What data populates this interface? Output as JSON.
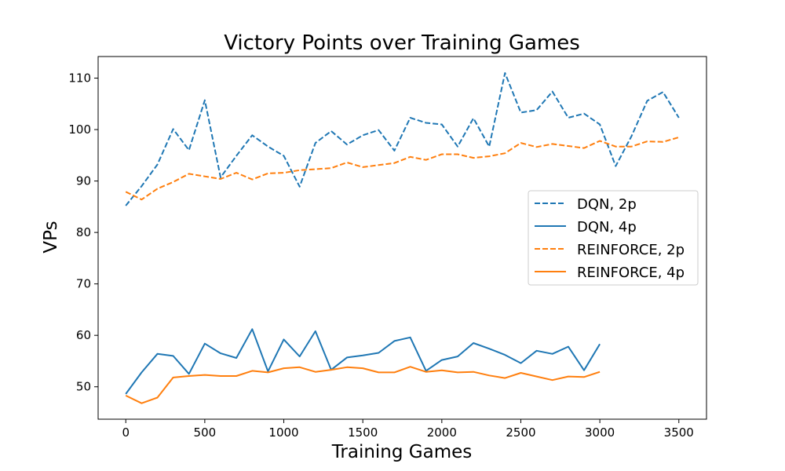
{
  "chart_data": {
    "type": "line",
    "title": "Victory Points over Training Games",
    "xlabel": "Training Games",
    "ylabel": "VPs",
    "xlim": [
      -175,
      3675
    ],
    "ylim": [
      43.7,
      114.2
    ],
    "xticks": [
      0,
      500,
      1000,
      1500,
      2000,
      2500,
      3000,
      3500
    ],
    "yticks": [
      50,
      60,
      70,
      80,
      90,
      100,
      110
    ],
    "grid": false,
    "legend_position": "center-right",
    "series": [
      {
        "name": "DQN, 2p",
        "color": "#1f77b4",
        "style": "dashed",
        "x": [
          0,
          100,
          200,
          300,
          400,
          500,
          600,
          700,
          800,
          900,
          1000,
          1100,
          1200,
          1300,
          1400,
          1500,
          1600,
          1700,
          1800,
          1900,
          2000,
          2100,
          2200,
          2300,
          2400,
          2500,
          2600,
          2700,
          2800,
          2900,
          3000,
          3100,
          3200,
          3300,
          3400,
          3500
        ],
        "y": [
          85.2,
          89.0,
          93.2,
          100.1,
          96.0,
          105.7,
          90.7,
          94.9,
          98.9,
          96.7,
          94.9,
          88.9,
          97.4,
          99.7,
          97.1,
          98.9,
          99.9,
          95.9,
          102.3,
          101.3,
          101.0,
          96.7,
          102.2,
          96.7,
          111.0,
          103.3,
          103.8,
          107.4,
          102.3,
          103.1,
          101.0,
          92.9,
          98.7,
          105.6,
          107.3,
          102.3
        ]
      },
      {
        "name": "DQN, 4p",
        "color": "#1f77b4",
        "style": "solid",
        "x": [
          0,
          100,
          200,
          300,
          400,
          500,
          600,
          700,
          800,
          900,
          1000,
          1100,
          1200,
          1300,
          1400,
          1500,
          1600,
          1700,
          1800,
          1900,
          2000,
          2100,
          2200,
          2300,
          2400,
          2500,
          2600,
          2700,
          2800,
          2900,
          3000
        ],
        "y": [
          48.6,
          52.8,
          56.4,
          56.0,
          52.5,
          58.4,
          56.5,
          55.6,
          61.2,
          53.0,
          59.2,
          55.9,
          60.8,
          53.3,
          55.7,
          56.1,
          56.6,
          58.9,
          59.6,
          53.1,
          55.2,
          55.9,
          58.5,
          57.4,
          56.2,
          54.6,
          57.0,
          56.4,
          57.8,
          53.2,
          58.3
        ]
      },
      {
        "name": "REINFORCE, 2p",
        "color": "#ff7f0e",
        "style": "dashed",
        "x": [
          0,
          100,
          200,
          300,
          400,
          500,
          600,
          700,
          800,
          900,
          1000,
          1100,
          1200,
          1300,
          1400,
          1500,
          1600,
          1700,
          1800,
          1900,
          2000,
          2100,
          2200,
          2300,
          2400,
          2500,
          2600,
          2700,
          2800,
          2900,
          3000,
          3100,
          3200,
          3300,
          3400,
          3500
        ],
        "y": [
          87.9,
          86.4,
          88.5,
          89.8,
          91.4,
          90.9,
          90.4,
          91.6,
          90.3,
          91.5,
          91.6,
          92.1,
          92.3,
          92.5,
          93.6,
          92.7,
          93.1,
          93.5,
          94.7,
          94.1,
          95.2,
          95.2,
          94.5,
          94.8,
          95.4,
          97.4,
          96.6,
          97.2,
          96.8,
          96.4,
          97.8,
          96.7,
          96.7,
          97.7,
          97.6,
          98.5
        ]
      },
      {
        "name": "REINFORCE, 4p",
        "color": "#ff7f0e",
        "style": "solid",
        "x": [
          0,
          100,
          200,
          300,
          400,
          500,
          600,
          700,
          800,
          900,
          1000,
          1100,
          1200,
          1300,
          1400,
          1500,
          1600,
          1700,
          1800,
          1900,
          2000,
          2100,
          2200,
          2300,
          2400,
          2500,
          2600,
          2700,
          2800,
          2900,
          3000
        ],
        "y": [
          48.3,
          46.8,
          47.9,
          51.8,
          52.1,
          52.3,
          52.1,
          52.1,
          53.1,
          52.8,
          53.6,
          53.8,
          52.9,
          53.3,
          53.8,
          53.6,
          52.8,
          52.8,
          53.9,
          52.9,
          53.2,
          52.8,
          52.9,
          52.2,
          51.7,
          52.7,
          52.0,
          51.3,
          52.0,
          51.9,
          52.9
        ]
      }
    ]
  }
}
